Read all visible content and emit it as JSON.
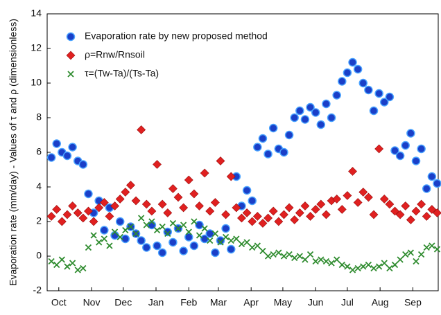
{
  "chart_data": {
    "type": "scatter",
    "y_label": "Evaporation rate (mm/day) - Values of τ and ρ (dimensionless)",
    "xlim": [
      -4,
      366
    ],
    "ylim": [
      -2,
      14
    ],
    "xticks": [
      {
        "value": 7,
        "label": "Oct"
      },
      {
        "value": 38,
        "label": "Nov"
      },
      {
        "value": 68,
        "label": "Dec"
      },
      {
        "value": 99,
        "label": "Jan"
      },
      {
        "value": 130,
        "label": "Feb"
      },
      {
        "value": 158,
        "label": "Mar"
      },
      {
        "value": 189,
        "label": "Apr"
      },
      {
        "value": 219,
        "label": "May"
      },
      {
        "value": 250,
        "label": "Jun"
      },
      {
        "value": 280,
        "label": "Jul"
      },
      {
        "value": 311,
        "label": "Aug"
      },
      {
        "value": 342,
        "label": "Sep"
      }
    ],
    "yticks": [
      -2,
      0,
      2,
      4,
      6,
      8,
      10,
      12,
      14
    ],
    "x": [
      0,
      5,
      10,
      15,
      20,
      25,
      30,
      35,
      40,
      45,
      50,
      55,
      60,
      65,
      70,
      75,
      80,
      85,
      90,
      95,
      100,
      105,
      110,
      115,
      120,
      125,
      130,
      135,
      140,
      145,
      150,
      155,
      160,
      165,
      170,
      175,
      180,
      185,
      190,
      195,
      200,
      205,
      210,
      215,
      220,
      225,
      230,
      235,
      240,
      245,
      250,
      255,
      260,
      265,
      270,
      275,
      280,
      285,
      290,
      295,
      300,
      305,
      310,
      315,
      320,
      325,
      330,
      335,
      340,
      345,
      350,
      355,
      360,
      365
    ],
    "series": [
      {
        "name": "Evaporation rate by new proposed method",
        "color": "#1a3fc8",
        "marker": "circle",
        "values": [
          5.7,
          6.5,
          6.0,
          5.8,
          6.3,
          5.5,
          5.3,
          3.6,
          2.5,
          3.2,
          1.5,
          2.8,
          1.2,
          2.0,
          1.0,
          1.7,
          1.3,
          0.9,
          0.5,
          1.8,
          0.6,
          0.2,
          1.4,
          0.8,
          1.6,
          0.3,
          1.1,
          0.6,
          1.8,
          1.0,
          1.3,
          0.2,
          0.9,
          1.6,
          0.4,
          4.6,
          2.9,
          3.8,
          3.2,
          6.3,
          6.8,
          5.9,
          7.4,
          6.2,
          6.0,
          7.0,
          8.0,
          8.4,
          7.9,
          8.6,
          8.3,
          7.6,
          8.8,
          8.0,
          9.3,
          10.1,
          10.6,
          11.2,
          10.8,
          10.0,
          9.6,
          8.4,
          9.4,
          8.9,
          9.2,
          6.1,
          5.8,
          6.4,
          7.1,
          5.5,
          6.2,
          3.9,
          4.6,
          4.2
        ]
      },
      {
        "name": "ρ=Rnw/Rnsoil",
        "color": "#e02020",
        "marker": "diamond",
        "values": [
          2.3,
          2.7,
          2.0,
          2.4,
          2.9,
          2.5,
          2.2,
          2.6,
          2.0,
          2.8,
          3.1,
          2.3,
          2.9,
          3.3,
          3.7,
          4.1,
          3.2,
          7.3,
          3.0,
          2.6,
          5.3,
          3.0,
          2.5,
          3.9,
          3.4,
          2.8,
          4.4,
          3.6,
          2.9,
          4.8,
          2.6,
          3.1,
          5.5,
          2.4,
          4.6,
          2.8,
          2.2,
          2.5,
          2.0,
          2.3,
          1.9,
          2.2,
          2.6,
          2.0,
          2.4,
          2.8,
          2.1,
          2.5,
          2.9,
          2.3,
          2.7,
          3.0,
          2.4,
          3.2,
          3.3,
          2.7,
          3.5,
          4.9,
          3.1,
          3.7,
          3.4,
          2.4,
          6.2,
          3.3,
          3.0,
          2.6,
          2.4,
          2.9,
          2.1,
          2.6,
          3.0,
          2.3,
          2.7,
          2.5
        ]
      },
      {
        "name": "τ=(Tw-Ta)/(Ts-Ta)",
        "color": "#2e8b2e",
        "marker": "x",
        "values": [
          -0.3,
          -0.5,
          -0.2,
          -0.6,
          -0.4,
          -0.8,
          -0.7,
          0.5,
          1.2,
          0.8,
          1.0,
          0.6,
          1.4,
          1.1,
          1.5,
          1.7,
          1.3,
          2.2,
          1.8,
          2.0,
          1.5,
          1.7,
          1.3,
          1.9,
          1.6,
          1.8,
          1.4,
          2.0,
          1.2,
          1.6,
          0.9,
          1.3,
          0.8,
          1.1,
          0.9,
          1.0,
          0.7,
          0.8,
          0.5,
          0.6,
          0.3,
          0.0,
          0.1,
          0.2,
          0.0,
          0.1,
          -0.1,
          0.0,
          -0.2,
          0.1,
          -0.3,
          -0.2,
          -0.3,
          -0.4,
          -0.2,
          -0.5,
          -0.6,
          -0.8,
          -0.7,
          -0.6,
          -0.5,
          -0.7,
          -0.6,
          -0.4,
          -0.7,
          -0.5,
          -0.2,
          0.1,
          0.2,
          -0.3,
          0.1,
          0.5,
          0.6,
          0.4
        ]
      }
    ]
  }
}
